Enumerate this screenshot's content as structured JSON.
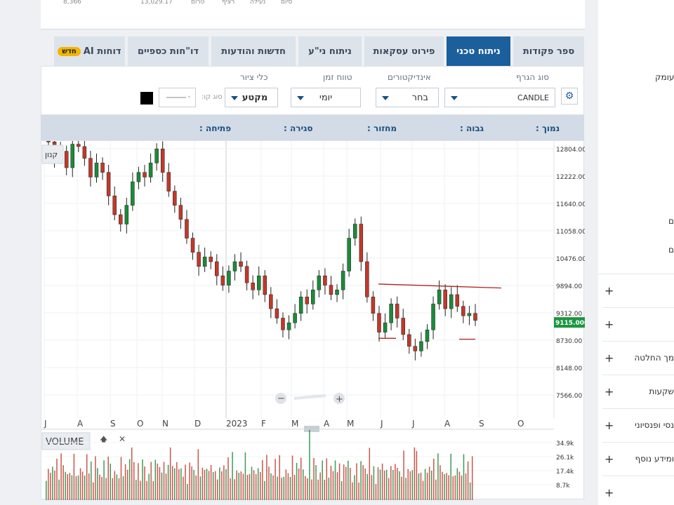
{
  "top_stats": [
    {
      "id": "s1",
      "text": "8,366"
    },
    {
      "id": "s2",
      "text": "13,029.17"
    },
    {
      "id": "s3",
      "text": "טרום"
    },
    {
      "id": "s4",
      "text": "רציף"
    },
    {
      "id": "s5",
      "text": "נעילה"
    },
    {
      "id": "s6",
      "text": "סיום"
    }
  ],
  "tabs": [
    {
      "label": "ספר פקודות",
      "active": false
    },
    {
      "label": "ניתוח טכני",
      "active": true
    },
    {
      "label": "פירוט עסקאות",
      "active": false
    },
    {
      "label": "ניתוח ני\"ע",
      "active": false
    },
    {
      "label": "חדשות והודעות",
      "active": false
    },
    {
      "label": "דו\"חות כספיים",
      "active": false
    },
    {
      "label": "דוחות AI",
      "active": false,
      "badge": "חדש"
    }
  ],
  "controls": {
    "chart_type_label": "סוג הגרף",
    "chart_type_value": "CANDLE",
    "indicators_label": "אינדיקטורים",
    "indicators_value": "בחר",
    "timeframe_label": "טווח זמן",
    "timeframe_value": "יומי",
    "draw_tools_label": "כלי ציור",
    "draw_tools_value": "מקטע",
    "line_type_label": "סוג קו:",
    "draw_color": "#000000"
  },
  "ohlc": {
    "low": "נמוך :",
    "high": "גבוה :",
    "volume": "מחזור :",
    "close": "סגירה :",
    "open": "פתיחה :"
  },
  "chart_data": {
    "type": "candlestick",
    "y_ticks": [
      "12804.00",
      "12222.00",
      "11640.00",
      "11058.00",
      "10476.00",
      "9894.00",
      "9312.00",
      "8730.00",
      "8148.00",
      "7566.00"
    ],
    "ylim": [
      7566,
      12804
    ],
    "current_price_label": "9115.000",
    "current_price": 9115,
    "x_labels": [
      "J",
      "A",
      "S",
      "O",
      "N",
      "D",
      "2023",
      "F",
      "M",
      "A",
      "M",
      "J",
      "J",
      "A",
      "S",
      "O"
    ],
    "legend_label": "קנון",
    "trendline_start": 9925,
    "trendline_end": 9840,
    "support_lines": [
      8770,
      8750
    ],
    "closes": [
      12950,
      12600,
      12750,
      12400,
      12900,
      12850,
      12600,
      12200,
      12500,
      12300,
      11800,
      11400,
      11200,
      11600,
      12100,
      12300,
      12200,
      12500,
      12800,
      12300,
      11900,
      11600,
      11300,
      10900,
      10600,
      10300,
      10500,
      10400,
      10100,
      9900,
      10200,
      10400,
      10300,
      9950,
      9800,
      10100,
      9700,
      9400,
      9200,
      8950,
      9100,
      9300,
      9650,
      9500,
      9800,
      10100,
      9900,
      9700,
      9800,
      10200,
      10900,
      11200,
      10400,
      9650,
      9300,
      8900,
      9100,
      9500,
      9200,
      8850,
      8600,
      8500,
      8700,
      8950,
      9500,
      9800,
      9400,
      9700,
      9450,
      9250,
      9300,
      9150
    ],
    "volume_ticks": [
      "34.9k",
      "26.1k",
      "17.4k",
      "8.7k"
    ],
    "volume_label": "VOLUME"
  },
  "sidebar": {
    "top_texts": [
      "עומק",
      "ם",
      "ם"
    ],
    "rows": [
      "",
      "",
      "מך החלטה",
      "שקעות",
      "נסי ופנסיוני",
      "ומידע נוסף",
      ""
    ]
  }
}
